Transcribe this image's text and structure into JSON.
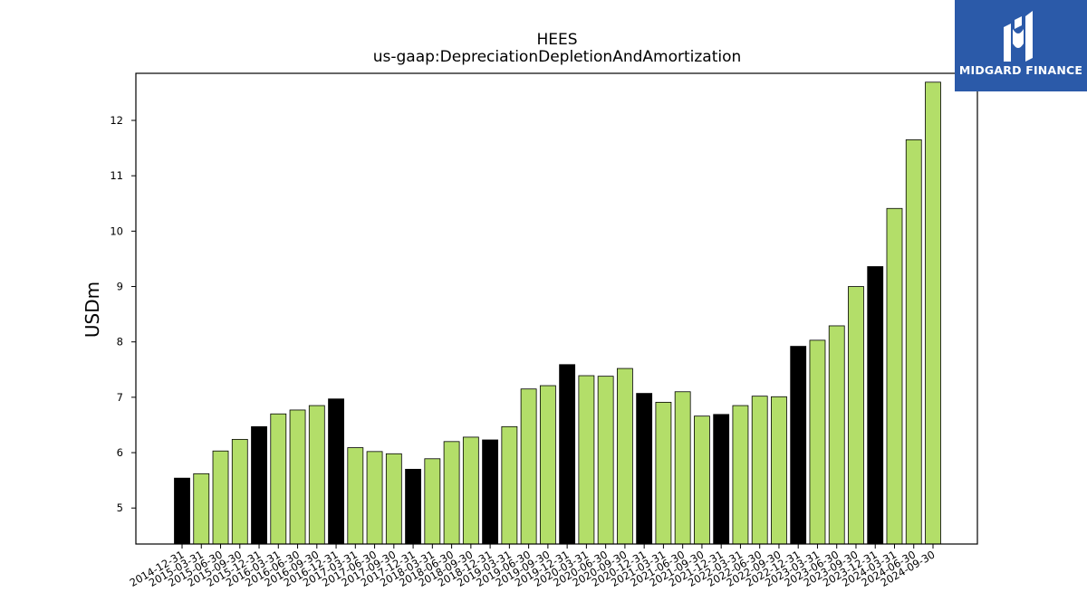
{
  "logo": {
    "text": "MIDGARD FINANCE",
    "icon": "midgard-mark-icon",
    "background": "#2b5aa9"
  },
  "colors": {
    "regular_bar": "#b3de69",
    "q4_bar": "#000000",
    "bar_edge": "#000000"
  },
  "chart_data": {
    "type": "bar",
    "title": "HEES",
    "subtitle": "us-gaap:DepreciationDepletionAndAmortization",
    "xlabel": "",
    "ylabel": "USDm",
    "ylim": [
      4.35,
      12.85
    ],
    "yticks": [
      5,
      6,
      7,
      8,
      9,
      10,
      11,
      12
    ],
    "grid": false,
    "categories": [
      "2014-12-31",
      "2015-03-31",
      "2015-06-30",
      "2015-09-30",
      "2015-12-31",
      "2016-03-31",
      "2016-06-30",
      "2016-09-30",
      "2016-12-31",
      "2017-03-31",
      "2017-06-30",
      "2017-09-30",
      "2017-12-31",
      "2018-03-31",
      "2018-06-30",
      "2018-09-30",
      "2018-12-31",
      "2019-03-31",
      "2019-06-30",
      "2019-09-30",
      "2019-12-31",
      "2020-03-31",
      "2020-06-30",
      "2020-09-30",
      "2020-12-31",
      "2021-03-31",
      "2021-06-30",
      "2021-09-30",
      "2021-12-31",
      "2022-03-31",
      "2022-06-30",
      "2022-09-30",
      "2022-12-31",
      "2023-03-31",
      "2023-06-30",
      "2023-09-30",
      "2023-12-31",
      "2024-03-31",
      "2024-06-30",
      "2024-09-30"
    ],
    "values": [
      5.54,
      5.62,
      6.03,
      6.24,
      6.47,
      6.7,
      6.77,
      6.85,
      6.97,
      6.09,
      6.02,
      5.98,
      5.7,
      5.89,
      6.2,
      6.28,
      6.23,
      6.47,
      7.15,
      7.21,
      7.59,
      7.39,
      7.38,
      7.52,
      7.07,
      6.91,
      7.1,
      6.66,
      6.69,
      6.85,
      7.02,
      7.01,
      7.92,
      8.03,
      8.29,
      9.0,
      9.36,
      10.41,
      11.65,
      12.69
    ],
    "highlight_rule": "December 31 periods shown in black"
  }
}
